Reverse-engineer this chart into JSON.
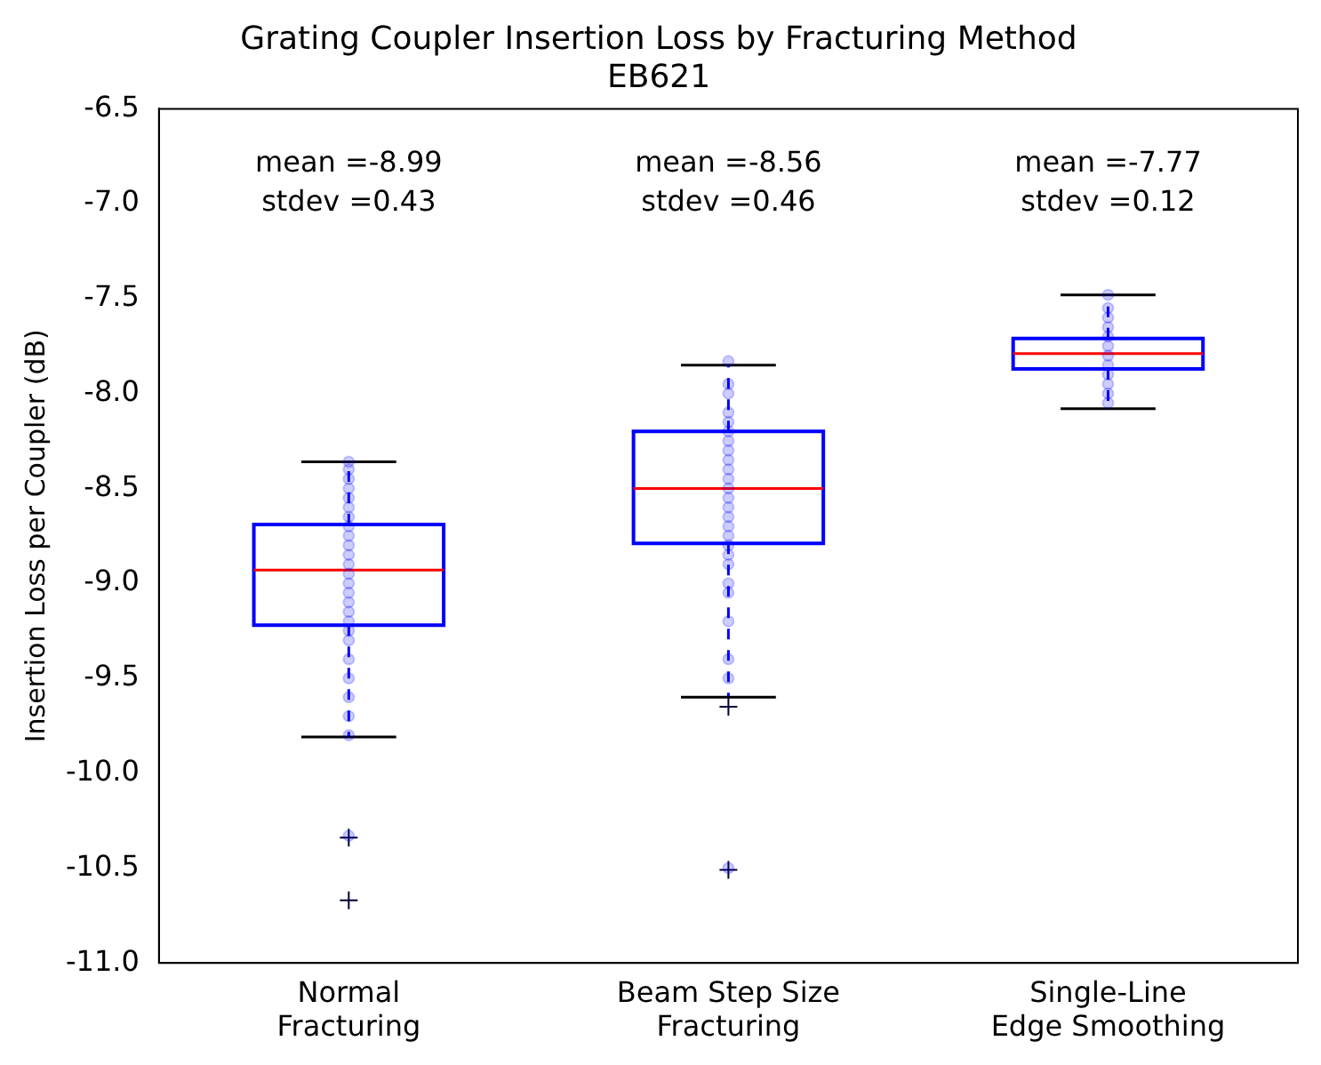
{
  "chart_data": {
    "type": "box",
    "title": "Grating Coupler Insertion Loss by Fracturing Method",
    "subtitle": "EB621",
    "ylabel": "Insertion Loss per Coupler (dB)",
    "categories": [
      "Normal\nFracturing",
      "Beam Step Size\nFracturing",
      "Single-Line\nEdge Smoothing"
    ],
    "color": "#0000ff",
    "boxes": [
      {
        "low": -9.81,
        "q1": -9.22,
        "median": -8.93,
        "q3": -8.69,
        "high": -8.36,
        "outliers": [
          -10.34,
          -10.67
        ]
      },
      {
        "low": -9.6,
        "q1": -8.79,
        "median": -8.5,
        "q3": -8.2,
        "high": -7.85,
        "outliers": [
          -9.65,
          -10.51
        ]
      },
      {
        "low": -8.08,
        "q1": -7.87,
        "median": -7.79,
        "q3": -7.71,
        "high": -7.48
      }
    ],
    "series": [
      {
        "type": "scatter",
        "color": "#0000ff",
        "x": [
          "Normal\nFracturing",
          "Normal\nFracturing",
          "Normal\nFracturing",
          "Normal\nFracturing",
          "Normal\nFracturing",
          "Normal\nFracturing",
          "Normal\nFracturing",
          "Normal\nFracturing",
          "Normal\nFracturing",
          "Normal\nFracturing",
          "Normal\nFracturing",
          "Normal\nFracturing",
          "Normal\nFracturing",
          "Normal\nFracturing",
          "Normal\nFracturing",
          "Normal\nFracturing",
          "Normal\nFracturing",
          "Normal\nFracturing",
          "Normal\nFracturing",
          "Normal\nFracturing",
          "Normal\nFracturing",
          "Normal\nFracturing",
          "Normal\nFracturing",
          "Normal\nFracturing",
          "Normal\nFracturing",
          "Normal\nFracturing"
        ],
        "values": [
          -8.36,
          -8.4,
          -8.45,
          -8.5,
          -8.55,
          -8.6,
          -8.65,
          -8.7,
          -8.75,
          -8.8,
          -8.85,
          -8.9,
          -8.95,
          -9.0,
          -9.05,
          -9.1,
          -9.15,
          -9.2,
          -9.25,
          -9.3,
          -9.4,
          -9.5,
          -9.6,
          -9.7,
          -9.8,
          -10.33
        ]
      },
      {
        "type": "scatter",
        "color": "#0000ff",
        "x": [
          "Beam Step Size\nFracturing",
          "Beam Step Size\nFracturing",
          "Beam Step Size\nFracturing",
          "Beam Step Size\nFracturing",
          "Beam Step Size\nFracturing",
          "Beam Step Size\nFracturing",
          "Beam Step Size\nFracturing",
          "Beam Step Size\nFracturing",
          "Beam Step Size\nFracturing",
          "Beam Step Size\nFracturing",
          "Beam Step Size\nFracturing",
          "Beam Step Size\nFracturing",
          "Beam Step Size\nFracturing",
          "Beam Step Size\nFracturing",
          "Beam Step Size\nFracturing",
          "Beam Step Size\nFracturing",
          "Beam Step Size\nFracturing",
          "Beam Step Size\nFracturing",
          "Beam Step Size\nFracturing",
          "Beam Step Size\nFracturing",
          "Beam Step Size\nFracturing",
          "Beam Step Size\nFracturing",
          "Beam Step Size\nFracturing",
          "Beam Step Size\nFracturing",
          "Beam Step Size\nFracturing",
          "Beam Step Size\nFracturing"
        ],
        "values": [
          -7.83,
          -7.95,
          -8.0,
          -8.1,
          -8.15,
          -8.2,
          -8.25,
          -8.3,
          -8.35,
          -8.4,
          -8.45,
          -8.5,
          -8.55,
          -8.6,
          -8.65,
          -8.7,
          -8.75,
          -8.8,
          -8.85,
          -8.9,
          -9.0,
          -9.05,
          -9.2,
          -9.4,
          -9.5,
          -10.5
        ]
      },
      {
        "type": "scatter",
        "color": "#0000ff",
        "x": [
          "Single-Line\nEdge Smoothing",
          "Single-Line\nEdge Smoothing",
          "Single-Line\nEdge Smoothing",
          "Single-Line\nEdge Smoothing",
          "Single-Line\nEdge Smoothing",
          "Single-Line\nEdge Smoothing",
          "Single-Line\nEdge Smoothing",
          "Single-Line\nEdge Smoothing",
          "Single-Line\nEdge Smoothing",
          "Single-Line\nEdge Smoothing",
          "Single-Line\nEdge Smoothing",
          "Single-Line\nEdge Smoothing"
        ],
        "values": [
          -7.48,
          -7.55,
          -7.6,
          -7.65,
          -7.7,
          -7.75,
          -7.8,
          -7.85,
          -7.9,
          -7.95,
          -8.0,
          -8.05
        ]
      }
    ],
    "marker": "circle",
    "annotations": [
      "mean =-8.99\nstdev =0.43",
      "mean =-8.56\nstdev =0.46",
      "mean =-7.77\nstdev =0.12"
    ],
    "ylim": [
      -11,
      -6.5
    ],
    "yticks": [
      {
        "value": -11,
        "label": "-11.0"
      },
      -10.5,
      {
        "value": -10,
        "label": "-10.0"
      },
      -9.5,
      {
        "value": -9,
        "label": "-9.0"
      },
      -8.5,
      {
        "value": -8,
        "label": "-8.0"
      },
      -7.5,
      {
        "value": -7,
        "label": "-7.0"
      },
      -6.5
    ],
    "grid": false,
    "legend": false
  }
}
